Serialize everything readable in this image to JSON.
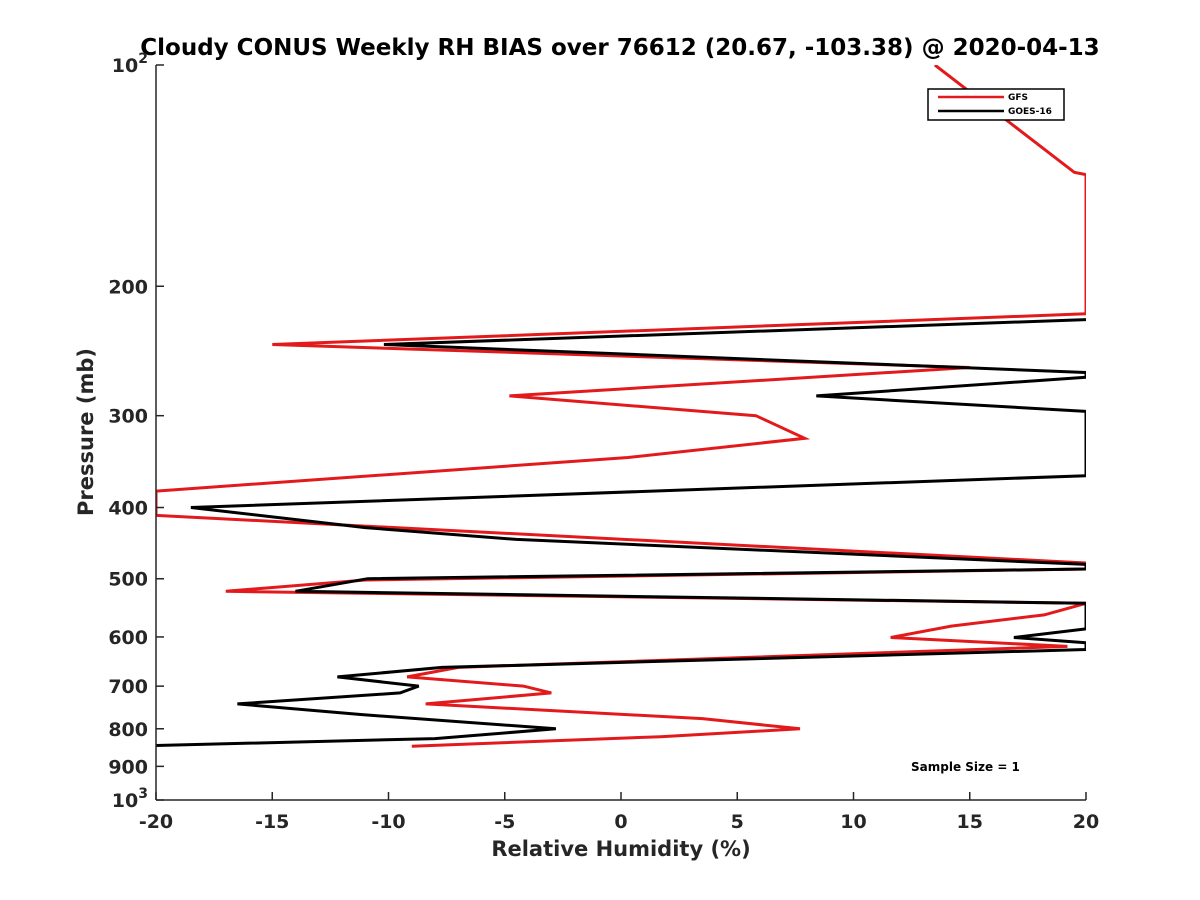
{
  "chart_data": {
    "type": "line",
    "title": "Cloudy CONUS Weekly RH BIAS over 76612 (20.67, -103.38) @ 2020-04-13",
    "xlabel": "Relative Humidity (%)",
    "ylabel": "Pressure (mb)",
    "xlim": [
      -20,
      20
    ],
    "ylim": [
      100,
      1000
    ],
    "y_scale": "log",
    "y_reversed": true,
    "x_ticks": [
      -20,
      -15,
      -10,
      -5,
      0,
      5,
      10,
      15,
      20
    ],
    "x_tick_labels": [
      "-20",
      "-15",
      "-10",
      "-5",
      "0",
      "5",
      "10",
      "15",
      "20"
    ],
    "y_ticks": [
      100,
      200,
      300,
      400,
      500,
      600,
      700,
      800,
      900,
      1000
    ],
    "y_tick_labels": [
      {
        "base": "10",
        "exp": "2"
      },
      {
        "base": "200",
        "exp": ""
      },
      {
        "base": "300",
        "exp": ""
      },
      {
        "base": "400",
        "exp": ""
      },
      {
        "base": "500",
        "exp": ""
      },
      {
        "base": "600",
        "exp": ""
      },
      {
        "base": "700",
        "exp": ""
      },
      {
        "base": "800",
        "exp": ""
      },
      {
        "base": "900",
        "exp": ""
      },
      {
        "base": "10",
        "exp": "3"
      }
    ],
    "legend_position": "top-right",
    "annotation": "Sample Size = 1",
    "series": [
      {
        "name": "GFS",
        "color": "#e31a1c",
        "points": [
          {
            "x": 13.5,
            "y": 100
          },
          {
            "x": 19.5,
            "y": 140
          },
          {
            "x": 20,
            "y": 141
          },
          {
            "x": 20,
            "y": 218
          },
          {
            "x": -15,
            "y": 240
          },
          {
            "x": 15,
            "y": 258
          },
          {
            "x": -4.8,
            "y": 282
          },
          {
            "x": 5.8,
            "y": 300
          },
          {
            "x": 7.9,
            "y": 322
          },
          {
            "x": 0.3,
            "y": 342
          },
          {
            "x": -20,
            "y": 380
          },
          {
            "x": -20,
            "y": 410
          },
          {
            "x": 20,
            "y": 476
          },
          {
            "x": 20,
            "y": 485
          },
          {
            "x": -11,
            "y": 502
          },
          {
            "x": -17,
            "y": 520
          },
          {
            "x": 20,
            "y": 540
          },
          {
            "x": 18.2,
            "y": 560
          },
          {
            "x": 14.2,
            "y": 580
          },
          {
            "x": 11.6,
            "y": 601
          },
          {
            "x": 19.2,
            "y": 618
          },
          {
            "x": -7,
            "y": 660
          },
          {
            "x": -9.2,
            "y": 680
          },
          {
            "x": -4.2,
            "y": 700
          },
          {
            "x": -3,
            "y": 715
          },
          {
            "x": -8.4,
            "y": 740
          },
          {
            "x": 3.5,
            "y": 775
          },
          {
            "x": 7.7,
            "y": 800
          },
          {
            "x": 1.7,
            "y": 820
          },
          {
            "x": -9,
            "y": 845
          }
        ]
      },
      {
        "name": "GOES-16",
        "color": "#000000",
        "points": [
          {
            "x": 20,
            "y": 222
          },
          {
            "x": -10.2,
            "y": 240
          },
          {
            "x": 20,
            "y": 262
          },
          {
            "x": 20,
            "y": 266
          },
          {
            "x": 8.4,
            "y": 282
          },
          {
            "x": 20,
            "y": 296
          },
          {
            "x": 20,
            "y": 362
          },
          {
            "x": -18.5,
            "y": 400
          },
          {
            "x": -11,
            "y": 426
          },
          {
            "x": -4.5,
            "y": 442
          },
          {
            "x": 20,
            "y": 478
          },
          {
            "x": 20,
            "y": 485
          },
          {
            "x": -10.9,
            "y": 500
          },
          {
            "x": -14,
            "y": 520
          },
          {
            "x": 20,
            "y": 540
          },
          {
            "x": 20,
            "y": 585
          },
          {
            "x": 16.9,
            "y": 601
          },
          {
            "x": 20,
            "y": 611
          },
          {
            "x": 20,
            "y": 624
          },
          {
            "x": -7.7,
            "y": 660
          },
          {
            "x": -12.2,
            "y": 680
          },
          {
            "x": -8.7,
            "y": 700
          },
          {
            "x": -9.5,
            "y": 715
          },
          {
            "x": -16.5,
            "y": 740
          },
          {
            "x": -11.2,
            "y": 765
          },
          {
            "x": -2.8,
            "y": 800
          },
          {
            "x": -8,
            "y": 825
          },
          {
            "x": -20,
            "y": 843
          }
        ]
      }
    ]
  }
}
